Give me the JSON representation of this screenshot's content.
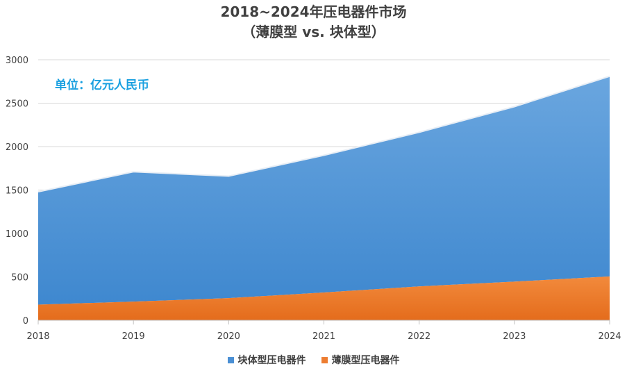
{
  "chart_data": {
    "type": "area",
    "stacked": true,
    "title": "2018~2024年压电器件市场",
    "subtitle": "（薄膜型 vs. 块体型）",
    "unit_note": "单位：亿元人民币",
    "x": [
      "2018",
      "2019",
      "2020",
      "2021",
      "2022",
      "2023",
      "2024"
    ],
    "y_ticks": [
      0,
      500,
      1000,
      1500,
      2000,
      2500,
      3000
    ],
    "ylim": [
      0,
      3000
    ],
    "grid": true,
    "legend_position": "bottom",
    "series": [
      {
        "name": "薄膜型压电器件",
        "color": "#ed7d31",
        "values": [
          180,
          215,
          255,
          320,
          390,
          445,
          505
        ]
      },
      {
        "name": "块体型压电器件",
        "color": "#5b9bd5",
        "values": [
          1300,
          1495,
          1405,
          1580,
          1775,
          2015,
          2305
        ]
      }
    ],
    "stacked_totals": [
      1480,
      1710,
      1660,
      1900,
      2165,
      2460,
      2810
    ]
  },
  "legend": [
    {
      "label": "块体型压电器件",
      "color": "#4a8fd4"
    },
    {
      "label": "薄膜型压电器件",
      "color": "#ed7d31"
    }
  ]
}
